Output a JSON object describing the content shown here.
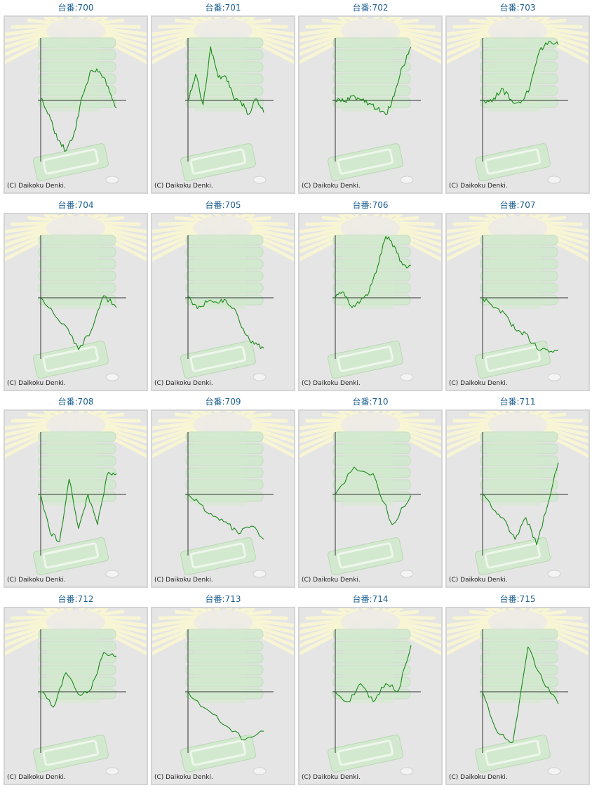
{
  "copyright": "(C) Daikoku Denki.",
  "colors": {
    "title": "#1a5d8f",
    "line": "#1a8a1a",
    "axis": "#333333",
    "panel_bg": "#e5e5e5",
    "rays": "#f7f5d4",
    "machine": "#d3e9cf"
  },
  "chart_data": [
    {
      "type": "line",
      "title": "台番:700",
      "y": [
        0.03,
        -0.25,
        -0.72,
        -0.92,
        -0.58,
        0.1,
        0.55,
        0.53,
        0.26,
        -0.14
      ]
    },
    {
      "type": "line",
      "title": "台番:701",
      "y": [
        0.0,
        0.48,
        -0.08,
        0.98,
        0.42,
        0.44,
        0.05,
        -0.03,
        -0.25,
        0.03,
        -0.22
      ]
    },
    {
      "type": "line",
      "title": "台番:702",
      "y": [
        0.0,
        -0.02,
        0.08,
        0.02,
        -0.06,
        -0.16,
        -0.26,
        0.08,
        0.62,
        0.98
      ]
    },
    {
      "type": "line",
      "title": "台番:703",
      "y": [
        0.0,
        -0.03,
        0.22,
        0.02,
        -0.05,
        0.24,
        0.9,
        1.08,
        1.02
      ]
    },
    {
      "type": "line",
      "title": "台番:704",
      "y": [
        0.0,
        -0.28,
        -0.52,
        -0.95,
        -0.6,
        0.04,
        -0.18
      ]
    },
    {
      "type": "line",
      "title": "台番:705",
      "y": [
        0.02,
        -0.2,
        -0.08,
        -0.08,
        -0.04,
        -0.22,
        -0.65,
        -0.85,
        -0.92
      ]
    },
    {
      "type": "line",
      "title": "台番:706",
      "y": [
        0.0,
        0.1,
        -0.18,
        -0.06,
        0.1,
        0.55,
        1.12,
        0.95,
        0.6,
        0.58
      ]
    },
    {
      "type": "line",
      "title": "台番:707",
      "y": [
        0.0,
        -0.18,
        -0.28,
        -0.58,
        -0.65,
        -0.92,
        -0.95,
        -0.95
      ]
    },
    {
      "type": "line",
      "title": "台番:708",
      "y": [
        0.0,
        -0.7,
        -0.86,
        0.28,
        -0.62,
        0.0,
        -0.55,
        0.35,
        0.38
      ]
    },
    {
      "type": "line",
      "title": "台番:709",
      "y": [
        0.0,
        -0.18,
        -0.4,
        -0.5,
        -0.72,
        -0.58,
        -0.82
      ]
    },
    {
      "type": "line",
      "title": "台番:710",
      "y": [
        0.0,
        0.5,
        0.38,
        -0.55,
        -0.02
      ]
    },
    {
      "type": "line",
      "title": "台番:711",
      "y": [
        0.0,
        -0.28,
        -0.45,
        -0.82,
        -0.42,
        -0.92,
        -0.2,
        0.58
      ]
    },
    {
      "type": "line",
      "title": "台番:712",
      "y": [
        0.0,
        -0.28,
        0.35,
        -0.05,
        0.05,
        0.72,
        0.65
      ]
    },
    {
      "type": "line",
      "title": "台番:713",
      "y": [
        0.0,
        -0.32,
        -0.62,
        -0.88,
        -0.72
      ]
    },
    {
      "type": "line",
      "title": "台番:714",
      "y": [
        0.0,
        -0.18,
        0.15,
        -0.18,
        0.15,
        0.02,
        0.85
      ]
    },
    {
      "type": "line",
      "title": "台番:715",
      "y": [
        0.0,
        -0.75,
        -0.92,
        0.82,
        0.18,
        -0.22
      ]
    }
  ]
}
